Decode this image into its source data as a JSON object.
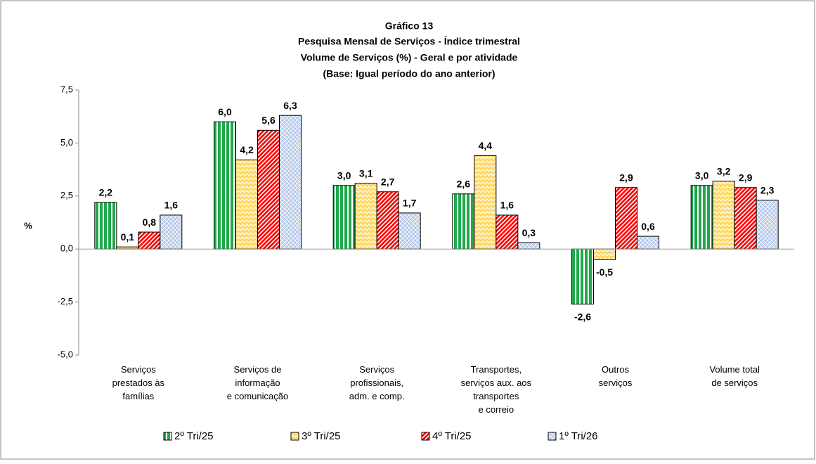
{
  "chart_data": {
    "type": "bar",
    "title": "Gráfico 13",
    "subtitle": [
      "Pesquisa Mensal de Serviços  - Índice trimestral",
      "Volume de Serviços (%) - Geral e por atividade",
      "(Base: Igual período do ano anterior)"
    ],
    "y_label": "%",
    "categories": [
      "Serviços\nprestados às\nfamílias",
      "Serviços de\ninformação\ne comunicação",
      "Serviços\nprofissionais,\nadm. e comp.",
      "Transportes,\nserviços aux. aos\ntransportes\ne correio",
      "Outros\nserviços",
      "Volume total\nde serviços"
    ],
    "series": [
      {
        "name": "2º Tri/25",
        "color": "#21a84b",
        "pattern": "vertical",
        "values": [
          2.2,
          6.0,
          3.0,
          2.6,
          -2.6,
          3.0
        ],
        "value_labels": [
          "2,2",
          "6,0",
          "3,0",
          "2,6",
          "-2,6",
          "3,0"
        ]
      },
      {
        "name": "3º Tri/25",
        "color": "#ffd966",
        "pattern": "zigzag",
        "values": [
          0.1,
          4.2,
          3.1,
          4.4,
          -0.5,
          3.2
        ],
        "value_labels": [
          "0,1",
          "4,2",
          "3,1",
          "4,4",
          "-0,5",
          "3,2"
        ]
      },
      {
        "name": "4º Tri/25",
        "color": "#ff0000",
        "pattern": "diagonal",
        "values": [
          0.8,
          5.6,
          2.7,
          1.6,
          2.9,
          2.9
        ],
        "value_labels": [
          "0,8",
          "5,6",
          "2,7",
          "1,6",
          "2,9",
          "2,9"
        ]
      },
      {
        "name": "1º Tri/26",
        "color": "#b4c7e7",
        "pattern": "cross",
        "values": [
          1.6,
          6.3,
          1.7,
          0.3,
          0.6,
          2.3
        ],
        "value_labels": [
          "1,6",
          "6,3",
          "1,7",
          "0,3",
          "0,6",
          "2,3"
        ]
      }
    ],
    "ylim": [
      -5.0,
      7.5
    ],
    "yticks": [
      {
        "value": -5.0,
        "label": "-5,0"
      },
      {
        "value": -2.5,
        "label": "-2,5"
      },
      {
        "value": 0.0,
        "label": "0,0"
      },
      {
        "value": 2.5,
        "label": "2,5"
      },
      {
        "value": 5.0,
        "label": "5,0"
      },
      {
        "value": 7.5,
        "label": "7,5"
      }
    ],
    "legend": "bottom"
  }
}
